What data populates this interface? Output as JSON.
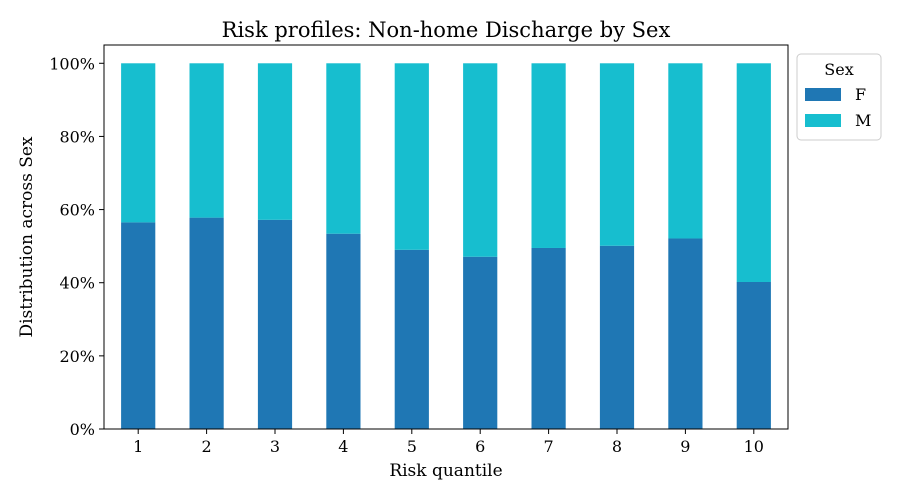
{
  "chart_data": {
    "type": "bar",
    "stacked": true,
    "title": "Risk profiles: Non-home Discharge by Sex",
    "xlabel": "Risk quantile",
    "ylabel": "Distribution across Sex",
    "categories": [
      "1",
      "2",
      "3",
      "4",
      "5",
      "6",
      "7",
      "8",
      "9",
      "10"
    ],
    "series": [
      {
        "name": "F",
        "color": "#1f77b4",
        "values": [
          0.565,
          0.578,
          0.572,
          0.534,
          0.49,
          0.471,
          0.495,
          0.501,
          0.521,
          0.402
        ]
      },
      {
        "name": "M",
        "color": "#17becf",
        "values": [
          0.435,
          0.422,
          0.428,
          0.466,
          0.51,
          0.529,
          0.505,
          0.499,
          0.479,
          0.598
        ]
      }
    ],
    "ylim": [
      0,
      1.05
    ],
    "yticks": [
      "0%",
      "20%",
      "40%",
      "60%",
      "80%",
      "100%"
    ],
    "ytick_values": [
      0,
      0.2,
      0.4,
      0.6,
      0.8,
      1.0
    ],
    "grid": false,
    "legend": {
      "title": "Sex",
      "placement": "outside-top-right"
    }
  }
}
